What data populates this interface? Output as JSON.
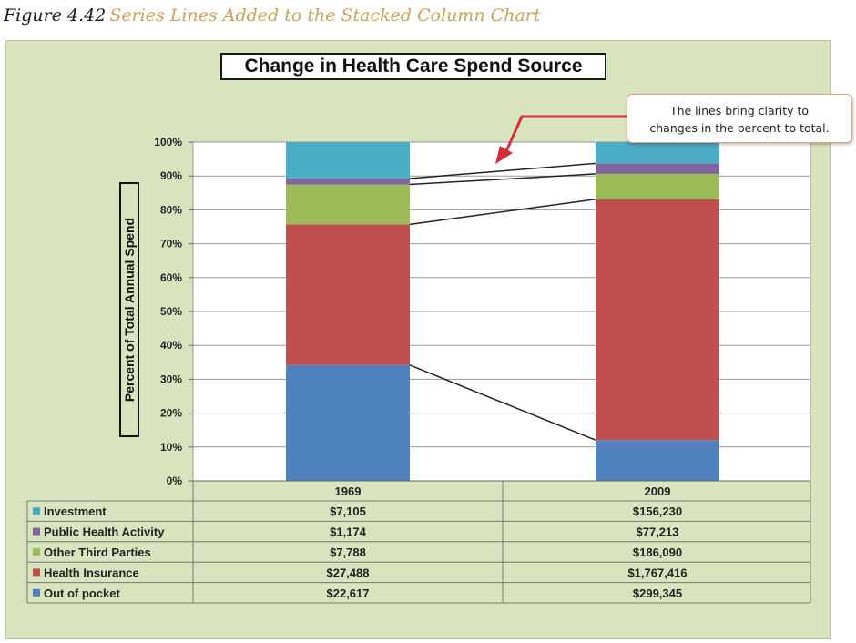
{
  "caption": {
    "number": "Figure 4.42",
    "text": "Series Lines Added to the Stacked Column Chart"
  },
  "callout": {
    "line1": "The lines bring clarity to",
    "line2": "changes in the percent to total."
  },
  "colors": {
    "Investment": "#4bacc6",
    "Public Health Activity": "#8064a2",
    "Other Third Parties": "#9bbb59",
    "Health Insurance": "#c0504d",
    "Out of pocket": "#4f81bd",
    "panel": "#d7e4bd",
    "arrow": "#d0303a"
  },
  "chart_data": {
    "type": "bar",
    "stacked": "percent",
    "title": "Change in Health Care Spend Source",
    "ylabel": "Percent of Total Annual Spend",
    "ylim": [
      0,
      100
    ],
    "yticks": [
      "0%",
      "10%",
      "20%",
      "30%",
      "40%",
      "50%",
      "60%",
      "70%",
      "80%",
      "90%",
      "100%"
    ],
    "categories": [
      "1969",
      "2009"
    ],
    "series": [
      {
        "name": "Out of pocket",
        "values": [
          22617,
          299345
        ],
        "labels": [
          "$22,617",
          "$299,345"
        ]
      },
      {
        "name": "Health Insurance",
        "values": [
          27488,
          1767416
        ],
        "labels": [
          "$27,488",
          "$1,767,416"
        ]
      },
      {
        "name": "Other Third Parties",
        "values": [
          7788,
          186090
        ],
        "labels": [
          "$7,788",
          "$186,090"
        ]
      },
      {
        "name": "Public Health Activity",
        "values": [
          1174,
          77213
        ],
        "labels": [
          "$1,174",
          "$77,213"
        ]
      },
      {
        "name": "Investment",
        "values": [
          7105,
          156230
        ],
        "labels": [
          "$7,105",
          "$156,230"
        ]
      }
    ],
    "series_lines": true,
    "grid": true,
    "data_table": true
  }
}
